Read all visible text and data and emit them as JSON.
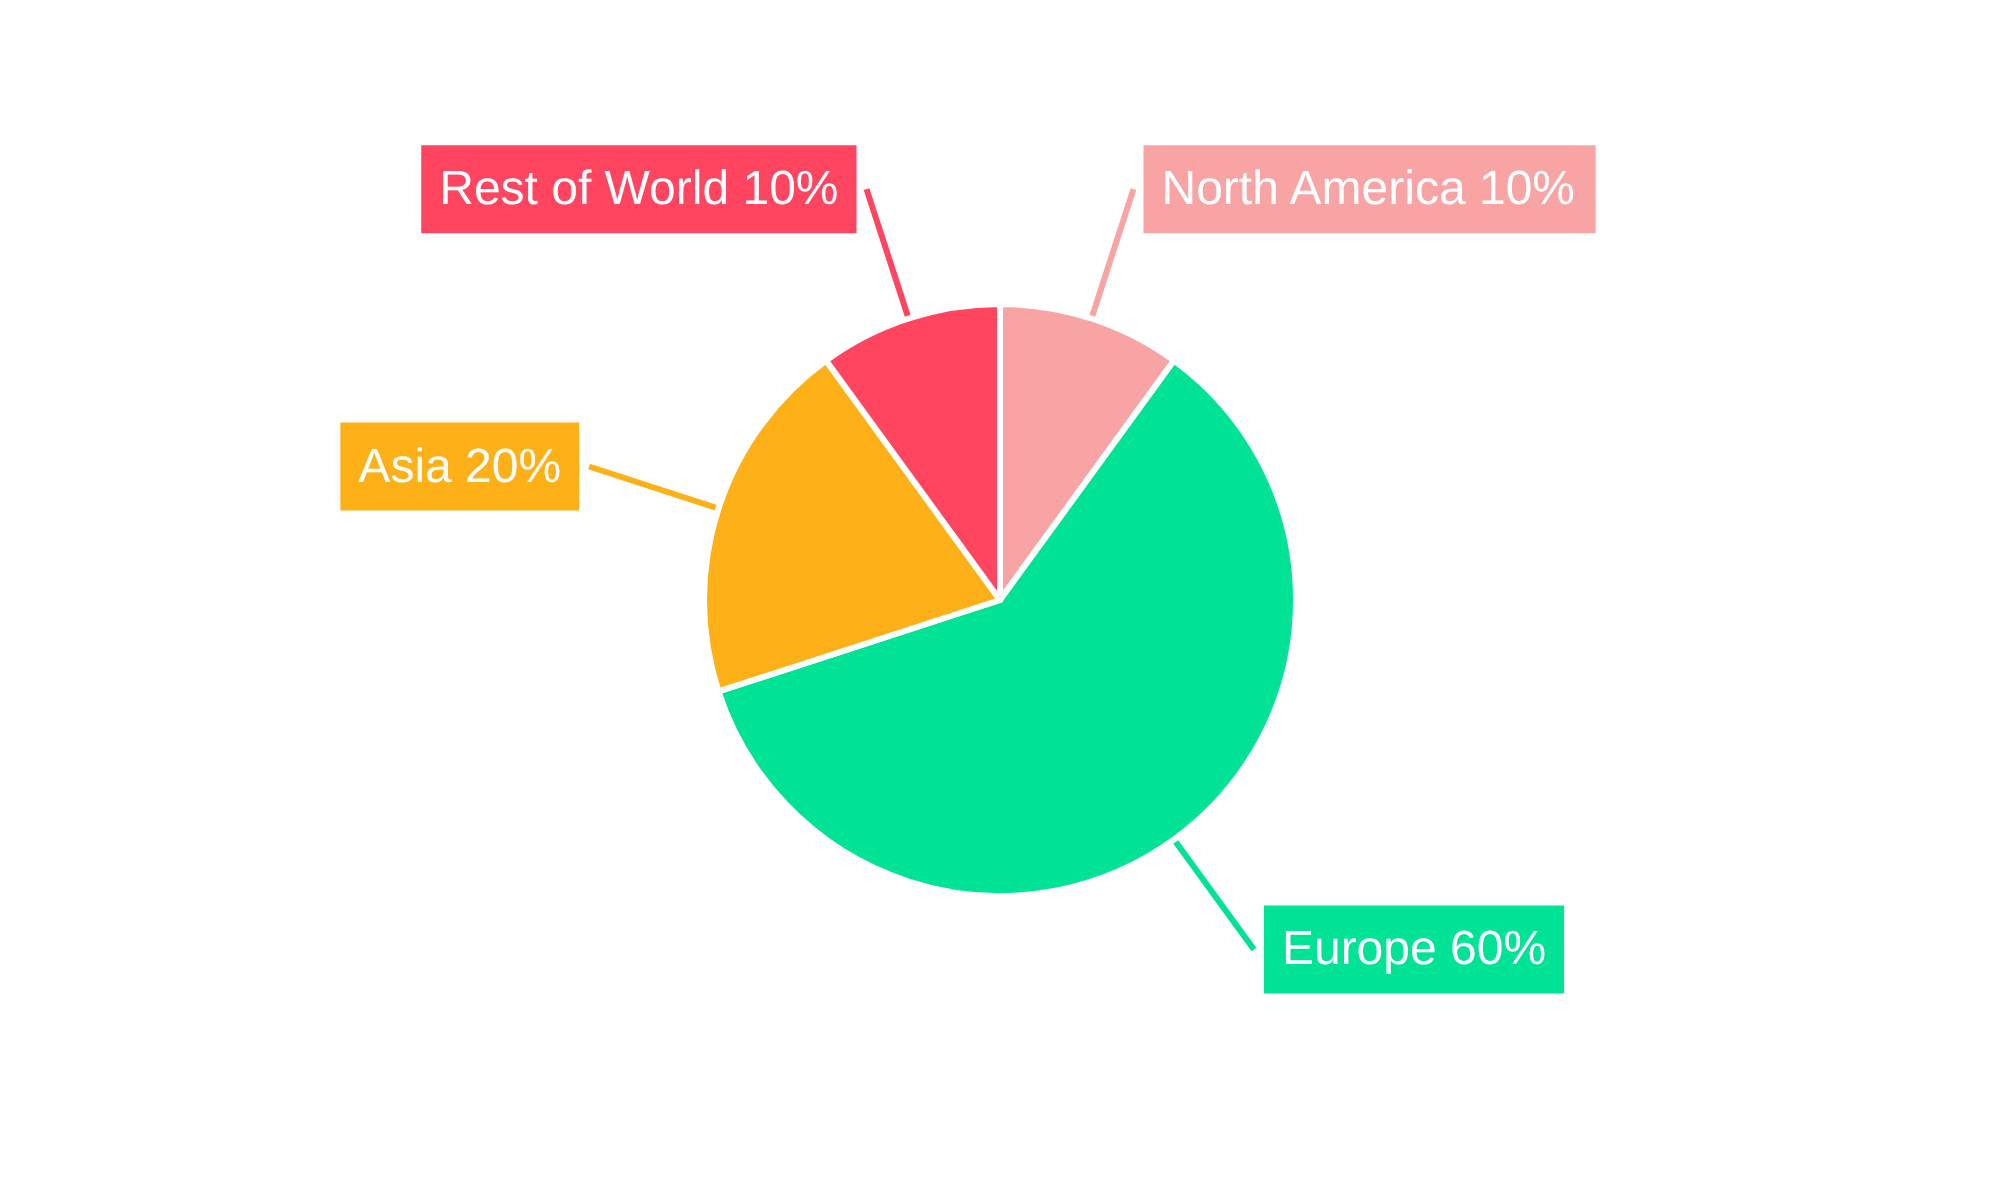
{
  "chart_data": {
    "type": "pie",
    "categories": [
      "North America",
      "Europe",
      "Asia",
      "Rest of World"
    ],
    "values": [
      10,
      60,
      20,
      10
    ],
    "value_labels": [
      "10%",
      "60%",
      "20%",
      "10%"
    ],
    "colors": [
      "#f8a4a5",
      "#00e396",
      "#feb019",
      "#ff4560"
    ]
  }
}
